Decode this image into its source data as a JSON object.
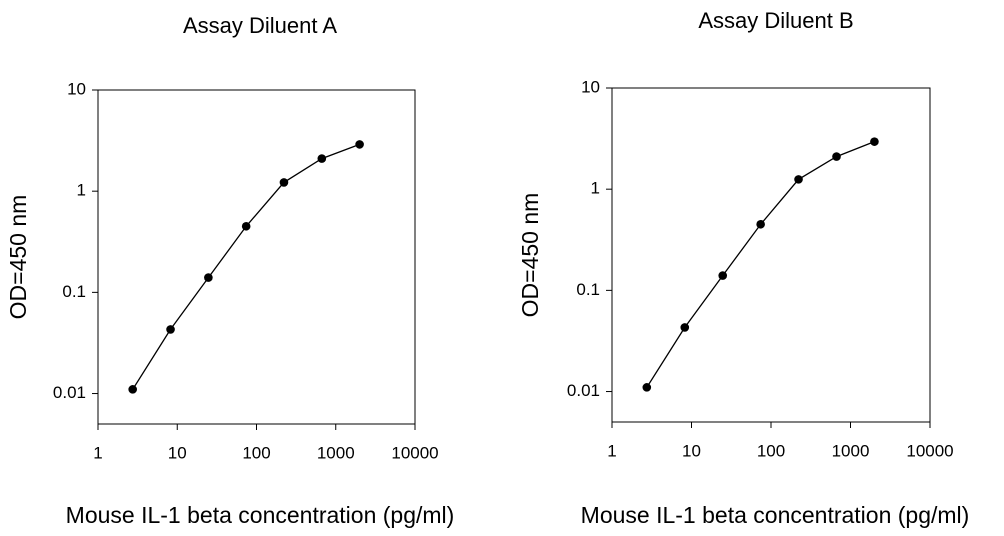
{
  "chart_data": [
    {
      "type": "line",
      "title": "Assay Diluent A",
      "xlabel": "Mouse IL-1 beta concentration (pg/ml)",
      "ylabel": "OD=450 nm",
      "x": [
        2.74,
        8.23,
        24.7,
        74.1,
        222,
        667,
        2000
      ],
      "values": [
        0.011,
        0.043,
        0.14,
        0.45,
        1.22,
        2.1,
        2.9
      ],
      "color": "#000000",
      "xscale": "log",
      "yscale": "log",
      "xlim": [
        1,
        10000
      ],
      "ylim": [
        0.005,
        10
      ],
      "xticks": [
        1,
        10,
        100,
        1000,
        10000
      ],
      "yticks": [
        0.01,
        0.1,
        1,
        10
      ],
      "grid": false
    },
    {
      "type": "line",
      "title": "Assay Diluent B",
      "xlabel": "Mouse IL-1 beta concentration (pg/ml)",
      "ylabel": "OD=450 nm",
      "x": [
        2.74,
        8.23,
        24.7,
        74.1,
        222,
        667,
        2000
      ],
      "values": [
        0.011,
        0.043,
        0.14,
        0.45,
        1.25,
        2.1,
        2.95
      ],
      "color": "#000000",
      "xscale": "log",
      "yscale": "log",
      "xlim": [
        1,
        10000
      ],
      "ylim": [
        0.005,
        10
      ],
      "xticks": [
        1,
        10,
        100,
        1000,
        10000
      ],
      "yticks": [
        0.01,
        0.1,
        1,
        10
      ],
      "grid": false
    }
  ]
}
